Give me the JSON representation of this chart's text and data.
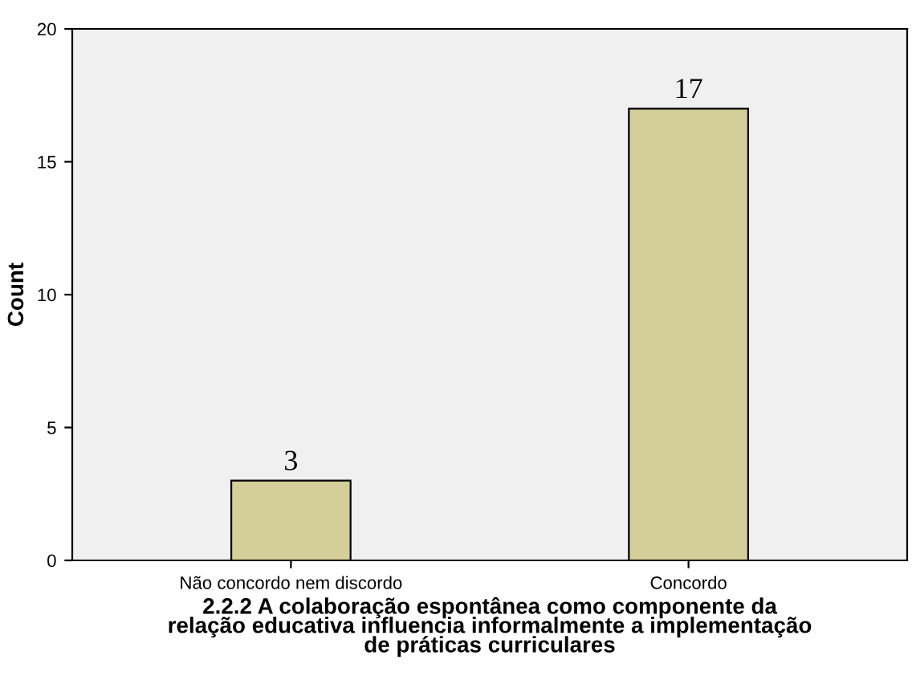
{
  "chart_data": {
    "type": "bar",
    "categories": [
      "Não concordo nem discordo",
      "Concordo"
    ],
    "values": [
      3,
      17
    ],
    "color": "#d3ce9a",
    "xlabel": "2.2.2 A colaboração espontânea como componente da\nrelação educativa influencia informalmente a implementação\nde práticas curriculares",
    "ylabel": "Count",
    "ylim": [
      0,
      20
    ],
    "yticks": [
      0,
      5,
      10,
      15,
      20
    ],
    "data_labels": true,
    "grid": false,
    "legend": false
  }
}
